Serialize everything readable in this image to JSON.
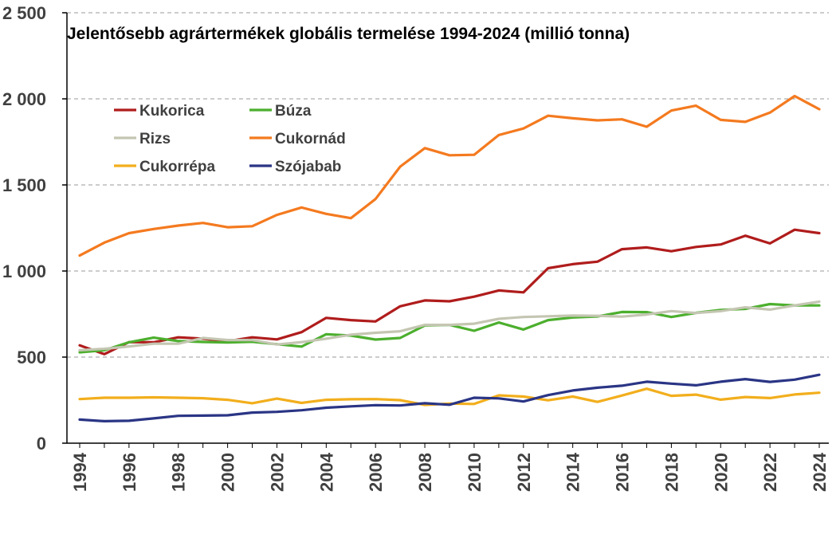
{
  "chart_data": {
    "type": "line",
    "title": "Jelentősebb agrártermékek  globális termelése 1994-2024 (millió tonna)",
    "xlabel": "",
    "ylabel": "",
    "ylim": [
      0,
      2500
    ],
    "yticks": [
      0,
      500,
      1000,
      1500,
      2000,
      2500
    ],
    "ytick_labels": [
      "0",
      "500",
      "1 000",
      "1 500",
      "2 000",
      "2 500"
    ],
    "xtick_labels": [
      "1994",
      "1996",
      "1998",
      "2000",
      "2002",
      "2004",
      "2006",
      "2008",
      "2010",
      "2012",
      "2014",
      "2016",
      "2018",
      "2020",
      "2022",
      "2024"
    ],
    "x": [
      1994,
      1995,
      1996,
      1997,
      1998,
      1999,
      2000,
      2001,
      2002,
      2003,
      2004,
      2005,
      2006,
      2007,
      2008,
      2009,
      2010,
      2011,
      2012,
      2013,
      2014,
      2015,
      2016,
      2017,
      2018,
      2019,
      2020,
      2021,
      2022,
      2023,
      2024
    ],
    "grid": "horizontal dashed",
    "legend_position": "top-left",
    "series": [
      {
        "name": "Kukorica",
        "color": "#B01C1C",
        "values": [
          568,
          517,
          587,
          586,
          615,
          607,
          592,
          615,
          603,
          645,
          728,
          715,
          707,
          795,
          829,
          824,
          851,
          887,
          876,
          1016,
          1040,
          1054,
          1127,
          1137,
          1115,
          1140,
          1154,
          1205,
          1160,
          1240,
          1220
        ]
      },
      {
        "name": "Búza",
        "color": "#4CAF2E",
        "values": [
          528,
          540,
          586,
          613,
          593,
          588,
          585,
          589,
          575,
          561,
          633,
          625,
          602,
          611,
          684,
          687,
          653,
          701,
          660,
          715,
          730,
          736,
          762,
          761,
          733,
          757,
          774,
          780,
          808,
          800,
          800
        ]
      },
      {
        "name": "Rizs",
        "color": "#C4C6B2",
        "values": [
          540,
          548,
          562,
          578,
          578,
          611,
          599,
          599,
          573,
          587,
          607,
          630,
          641,
          650,
          687,
          687,
          694,
          722,
          733,
          737,
          741,
          740,
          735,
          747,
          767,
          756,
          767,
          789,
          776,
          800,
          822
        ]
      },
      {
        "name": "Cukornád",
        "color": "#F47A1F",
        "values": [
          1090,
          1165,
          1220,
          1244,
          1264,
          1279,
          1254,
          1260,
          1326,
          1369,
          1332,
          1307,
          1418,
          1606,
          1714,
          1672,
          1675,
          1790,
          1828,
          1902,
          1887,
          1875,
          1881,
          1838,
          1932,
          1960,
          1878,
          1866,
          1920,
          2016,
          1940
        ]
      },
      {
        "name": "Cukorrépa",
        "color": "#F2AE1C",
        "values": [
          256,
          264,
          264,
          266,
          264,
          261,
          252,
          232,
          259,
          234,
          252,
          255,
          256,
          250,
          222,
          230,
          228,
          278,
          271,
          249,
          271,
          240,
          277,
          316,
          275,
          282,
          253,
          268,
          262,
          283,
          293
        ]
      },
      {
        "name": "Szójabab",
        "color": "#2A3585",
        "values": [
          137,
          128,
          130,
          144,
          159,
          160,
          162,
          178,
          182,
          191,
          206,
          214,
          221,
          219,
          232,
          223,
          264,
          260,
          242,
          279,
          306,
          322,
          334,
          357,
          346,
          336,
          357,
          372,
          356,
          369,
          397
        ]
      }
    ]
  }
}
